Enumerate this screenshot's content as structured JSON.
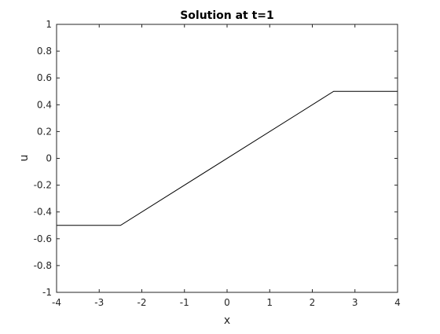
{
  "chart_data": {
    "type": "line",
    "title": "Solution at t=1",
    "xlabel": "x",
    "ylabel": "u",
    "xlim": [
      -4,
      4
    ],
    "ylim": [
      -1,
      1
    ],
    "xticks": [
      -4,
      -3,
      -2,
      -1,
      0,
      1,
      2,
      3,
      4
    ],
    "yticks": [
      -1,
      -0.8,
      -0.6,
      -0.4,
      -0.2,
      0,
      0.2,
      0.4,
      0.6,
      0.8,
      1
    ],
    "grid": false,
    "series": [
      {
        "x": [
          -4,
          -2.5,
          2.5,
          4
        ],
        "y": [
          -0.5,
          -0.5,
          0.5,
          0.5
        ],
        "color": "#000000"
      }
    ]
  }
}
